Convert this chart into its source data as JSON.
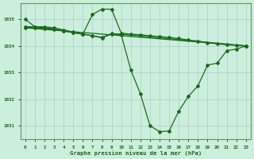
{
  "title": "Graphe pression niveau de la mer (hPa)",
  "background_color": "#cceedd",
  "line_color": "#1a6b1a",
  "ylim": [
    1030.5,
    1035.6
  ],
  "yticks": [
    1031,
    1032,
    1033,
    1034,
    1035
  ],
  "xlim": [
    -0.5,
    23.5
  ],
  "xticks": [
    0,
    1,
    2,
    3,
    4,
    5,
    6,
    7,
    8,
    9,
    10,
    11,
    12,
    13,
    14,
    15,
    16,
    17,
    18,
    19,
    20,
    21,
    22,
    23
  ],
  "s1x": [
    0,
    1,
    2,
    3,
    4,
    5,
    6,
    7,
    8,
    9,
    10,
    11,
    12,
    13,
    14,
    15,
    16,
    17,
    18,
    19,
    20,
    21,
    22,
    23
  ],
  "s1y": [
    1035.0,
    1034.72,
    1034.72,
    1034.68,
    1034.6,
    1034.52,
    1034.45,
    1034.38,
    1034.3,
    1034.45,
    1034.42,
    1033.1,
    1032.2,
    1031.0,
    1030.78,
    1030.8,
    1031.55,
    1032.1,
    1032.5,
    1033.28,
    1033.35,
    1033.82,
    1033.88,
    1034.0
  ],
  "s2x": [
    0,
    1,
    2,
    3,
    4,
    5,
    6,
    7,
    8,
    9,
    10,
    11,
    12,
    13,
    14,
    15,
    16,
    17,
    18,
    19,
    20,
    21,
    22,
    23
  ],
  "s2y": [
    1034.72,
    1034.72,
    1034.68,
    1034.64,
    1034.56,
    1034.5,
    1034.44,
    1035.18,
    1035.38,
    1035.38,
    1034.48,
    1034.44,
    1034.42,
    1034.38,
    1034.35,
    1034.32,
    1034.28,
    1034.22,
    1034.18,
    1034.12,
    1034.08,
    1034.04,
    1034.02,
    1034.0
  ],
  "s3x": [
    0,
    1,
    2,
    3,
    4,
    5,
    6,
    7,
    8,
    9,
    10,
    23
  ],
  "s3y": [
    1034.7,
    1034.68,
    1034.65,
    1034.62,
    1034.56,
    1034.5,
    1034.44,
    1034.38,
    1034.32,
    1034.46,
    1034.44,
    1034.0
  ],
  "s4x": [
    0,
    23
  ],
  "s4y": [
    1034.68,
    1034.0
  ]
}
